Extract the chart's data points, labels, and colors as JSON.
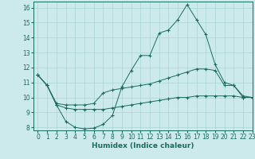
{
  "xlabel": "Humidex (Indice chaleur)",
  "bg_color": "#cceaec",
  "grid_color": "#aad4d6",
  "line_color": "#1a6b60",
  "xlim": [
    -0.5,
    23
  ],
  "ylim": [
    7.8,
    16.4
  ],
  "yticks": [
    8,
    9,
    10,
    11,
    12,
    13,
    14,
    15,
    16
  ],
  "xticks": [
    0,
    1,
    2,
    3,
    4,
    5,
    6,
    7,
    8,
    9,
    10,
    11,
    12,
    13,
    14,
    15,
    16,
    17,
    18,
    19,
    20,
    21,
    22,
    23
  ],
  "line1_x": [
    0,
    1,
    2,
    3,
    4,
    5,
    6,
    7,
    8,
    9,
    10,
    11,
    12,
    13,
    14,
    15,
    16,
    17,
    18,
    19,
    20,
    21,
    22,
    23
  ],
  "line1_y": [
    11.5,
    10.8,
    9.5,
    8.4,
    8.0,
    7.9,
    7.95,
    8.2,
    8.8,
    10.7,
    11.8,
    12.8,
    12.8,
    14.3,
    14.5,
    15.2,
    16.2,
    15.2,
    14.2,
    12.2,
    11.0,
    10.8,
    10.0,
    10.0
  ],
  "line2_x": [
    0,
    1,
    2,
    3,
    4,
    5,
    6,
    7,
    8,
    9,
    10,
    11,
    12,
    13,
    14,
    15,
    16,
    17,
    18,
    19,
    20,
    21,
    22,
    23
  ],
  "line2_y": [
    11.5,
    10.8,
    9.6,
    9.5,
    9.5,
    9.5,
    9.6,
    10.3,
    10.5,
    10.6,
    10.7,
    10.8,
    10.9,
    11.1,
    11.3,
    11.5,
    11.7,
    11.9,
    11.9,
    11.8,
    10.8,
    10.8,
    10.1,
    10.0
  ],
  "line3_x": [
    0,
    1,
    2,
    3,
    4,
    5,
    6,
    7,
    8,
    9,
    10,
    11,
    12,
    13,
    14,
    15,
    16,
    17,
    18,
    19,
    20,
    21,
    22,
    23
  ],
  "line3_y": [
    11.5,
    10.8,
    9.5,
    9.3,
    9.2,
    9.2,
    9.2,
    9.2,
    9.3,
    9.4,
    9.5,
    9.6,
    9.7,
    9.8,
    9.9,
    10.0,
    10.0,
    10.1,
    10.1,
    10.1,
    10.1,
    10.1,
    10.0,
    10.0
  ]
}
